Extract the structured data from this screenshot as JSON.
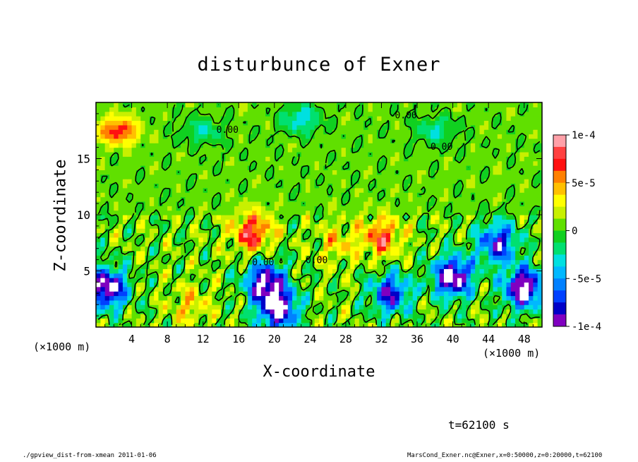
{
  "chart_data": {
    "type": "heatmap",
    "title": "disturbunce of Exner",
    "xlabel": "X-coordinate",
    "ylabel": "Z-coordinate",
    "x_unit_label": "(×1000 m)",
    "xlim": [
      0,
      50
    ],
    "ylim": [
      0,
      20
    ],
    "x_ticks": [
      4,
      8,
      12,
      16,
      20,
      24,
      28,
      32,
      36,
      40,
      44,
      48
    ],
    "y_ticks": [
      5,
      10,
      15
    ],
    "colorbar": {
      "range": [
        -0.0001,
        0.0001
      ],
      "tick_labels": [
        "1e-4",
        "5e-5",
        "0",
        "-5e-5",
        "-1e-4"
      ],
      "colors": [
        "#ffa0a8",
        "#ff4040",
        "#ff1010",
        "#ff8000",
        "#ffc000",
        "#ffff00",
        "#c8f000",
        "#60e000",
        "#10d020",
        "#00e070",
        "#00e0e0",
        "#00b8ff",
        "#0080ff",
        "#0040ff",
        "#0000c8",
        "#8000c0"
      ]
    },
    "contour_labels": [
      "0.00",
      "0.00",
      "0.00",
      "0.00",
      "0.00"
    ],
    "grid": false,
    "features": [
      {
        "x": 2.5,
        "z": 17.5,
        "value": 7e-05
      },
      {
        "x": 17.5,
        "z": 8.5,
        "value": 7e-05
      },
      {
        "x": 32,
        "z": 8,
        "value": 6e-05
      },
      {
        "x": 27,
        "z": 7.5,
        "value": 3e-05
      },
      {
        "x": 12,
        "z": 17.5,
        "value": -3e-05
      },
      {
        "x": 23,
        "z": 18.5,
        "value": -4e-05
      },
      {
        "x": 38,
        "z": 17.5,
        "value": -3e-05
      },
      {
        "x": 45,
        "z": 7.5,
        "value": -9e-05
      },
      {
        "x": 40,
        "z": 4.5,
        "value": -0.00012
      },
      {
        "x": 19,
        "z": 4.0,
        "value": -0.00011
      },
      {
        "x": 20.5,
        "z": 1.5,
        "value": -0.00011
      },
      {
        "x": 33,
        "z": 3.0,
        "value": -9e-05
      },
      {
        "x": 10.5,
        "z": 2.0,
        "value": 3e-05
      },
      {
        "x": 1.2,
        "z": 3.5,
        "value": -0.00012
      },
      {
        "x": 48,
        "z": 3.5,
        "value": -0.00012
      }
    ]
  },
  "annotations": {
    "time": "t=62100 s",
    "footer_left": "./gpview_dist-from-xmean   2011-01-06",
    "footer_right": "MarsCond_Exner.nc@Exner,x=0:50000,z=0:20000,t=62100"
  }
}
